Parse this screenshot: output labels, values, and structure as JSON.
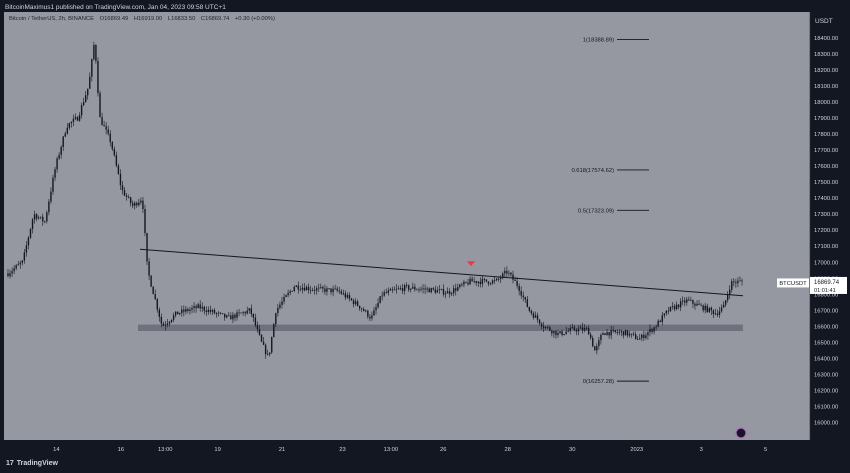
{
  "header": {
    "publisher": "BitcoinMaximus1 published on TradingView.com, Jan 04, 2023 09:58 UTC+1",
    "symbol": "Bitcoin / TetherUS, 2h, BINANCE",
    "open": "O16869.49",
    "high": "H16919.00",
    "low": "L16833.50",
    "close": "C16869.74",
    "change": "+0.30 (+0.00%)"
  },
  "footer": {
    "logo_glyph": "17",
    "brand": "TradingView"
  },
  "colors": {
    "background": "#9598a1",
    "frame": "#131722",
    "axis_text": "#d1d4dc",
    "candles": "#131722",
    "support_zone": "#6a6d78",
    "arrow": "#f23645",
    "price_tag": "#ffffff"
  },
  "chart_data": {
    "type": "candlestick",
    "y_axis_unit": "USDT",
    "ylim": [
      15890,
      18560
    ],
    "y_ticks": [
      16000,
      16100,
      16200,
      16300,
      16400,
      16500,
      16600,
      16700,
      16800,
      16900,
      17000,
      17100,
      17200,
      17300,
      17400,
      17500,
      17600,
      17700,
      17800,
      17900,
      18000,
      18100,
      18200,
      18300,
      18400
    ],
    "y_tick_labels": [
      "16000.00",
      "16100.00",
      "16200.00",
      "16300.00",
      "16400.00",
      "16500.00",
      "16600.00",
      "16700.00",
      "16800.00",
      "16900.00",
      "17000.00",
      "17100.00",
      "17200.00",
      "17300.00",
      "17400.00",
      "17500.00",
      "17600.00",
      "17700.00",
      "17800.00",
      "17900.00",
      "18000.00",
      "18100.00",
      "18200.00",
      "18300.00",
      "18400.00"
    ],
    "x_tick_labels": [
      "14",
      "16",
      "13:00",
      "19",
      "21",
      "23",
      "13:00",
      "26",
      "28",
      "30",
      "2023",
      "3",
      "5"
    ],
    "fib_levels": [
      {
        "label": "1(18388.89)",
        "value": 18388.89
      },
      {
        "label": "0.618(17574.62)",
        "value": 17574.62
      },
      {
        "label": "0.5(17323.09)",
        "value": 17323.09
      },
      {
        "label": "0(16257.28)",
        "value": 16257.28
      }
    ],
    "resistance_line": {
      "start": 17080,
      "end": 16790
    },
    "support_zone": [
      16570,
      16610
    ],
    "arrow_marker": {
      "value": 16980
    },
    "last_price": {
      "symbol": "BTCUSDT",
      "value": "16869.74",
      "countdown": "01:01:41"
    },
    "path": [
      [
        0,
        16930
      ],
      [
        0.02,
        17000
      ],
      [
        0.035,
        17300
      ],
      [
        0.05,
        17250
      ],
      [
        0.065,
        17600
      ],
      [
        0.08,
        17850
      ],
      [
        0.095,
        17900
      ],
      [
        0.11,
        18100
      ],
      [
        0.118,
        18388
      ],
      [
        0.125,
        17900
      ],
      [
        0.14,
        17750
      ],
      [
        0.155,
        17450
      ],
      [
        0.17,
        17350
      ],
      [
        0.183,
        17400
      ],
      [
        0.19,
        16950
      ],
      [
        0.21,
        16600
      ],
      [
        0.23,
        16680
      ],
      [
        0.26,
        16720
      ],
      [
        0.3,
        16650
      ],
      [
        0.33,
        16700
      ],
      [
        0.345,
        16500
      ],
      [
        0.355,
        16400
      ],
      [
        0.365,
        16700
      ],
      [
        0.39,
        16850
      ],
      [
        0.42,
        16830
      ],
      [
        0.45,
        16820
      ],
      [
        0.48,
        16720
      ],
      [
        0.495,
        16650
      ],
      [
        0.51,
        16800
      ],
      [
        0.54,
        16840
      ],
      [
        0.57,
        16830
      ],
      [
        0.6,
        16810
      ],
      [
        0.63,
        16880
      ],
      [
        0.665,
        16880
      ],
      [
        0.68,
        16940
      ],
      [
        0.695,
        16850
      ],
      [
        0.71,
        16700
      ],
      [
        0.73,
        16600
      ],
      [
        0.75,
        16550
      ],
      [
        0.77,
        16580
      ],
      [
        0.79,
        16580
      ],
      [
        0.8,
        16440
      ],
      [
        0.81,
        16560
      ],
      [
        0.84,
        16560
      ],
      [
        0.86,
        16520
      ],
      [
        0.88,
        16590
      ],
      [
        0.9,
        16700
      ],
      [
        0.925,
        16760
      ],
      [
        0.945,
        16720
      ],
      [
        0.965,
        16680
      ],
      [
        0.975,
        16720
      ],
      [
        0.985,
        16870
      ],
      [
        1,
        16880
      ]
    ]
  }
}
